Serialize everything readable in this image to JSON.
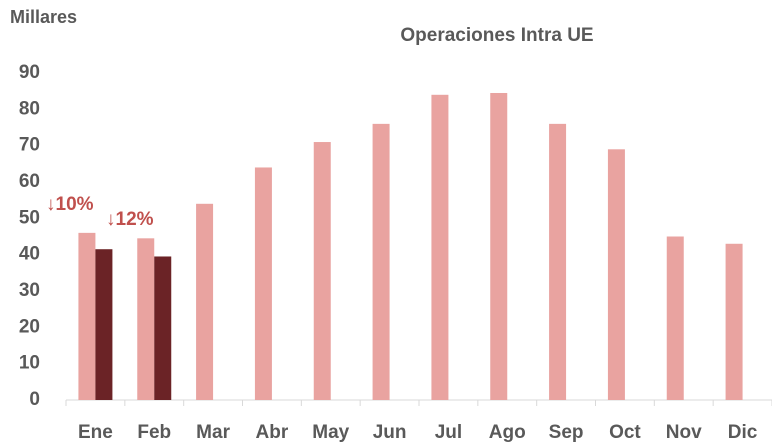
{
  "chart_data": {
    "type": "bar",
    "title": "Operaciones Intra UE",
    "y_axis_label": "Millares",
    "categories": [
      "Ene",
      "Feb",
      "Mar",
      "Abr",
      "May",
      "Jun",
      "Jul",
      "Ago",
      "Sep",
      "Oct",
      "Nov",
      "Dic"
    ],
    "series": [
      {
        "color": "#e9a3a0",
        "values": [
          46,
          44.5,
          54,
          64,
          71,
          76,
          84,
          84.5,
          76,
          69,
          45,
          43
        ]
      },
      {
        "color": "#6b2326",
        "values": [
          41.5,
          39.5,
          null,
          null,
          null,
          null,
          null,
          null,
          null,
          null,
          null,
          null
        ]
      }
    ],
    "annotations": [
      "↓10%",
      "↓12%"
    ],
    "ylim": [
      0,
      90
    ],
    "yticks": [
      0,
      10,
      20,
      30,
      40,
      50,
      60,
      70,
      80,
      90
    ]
  }
}
